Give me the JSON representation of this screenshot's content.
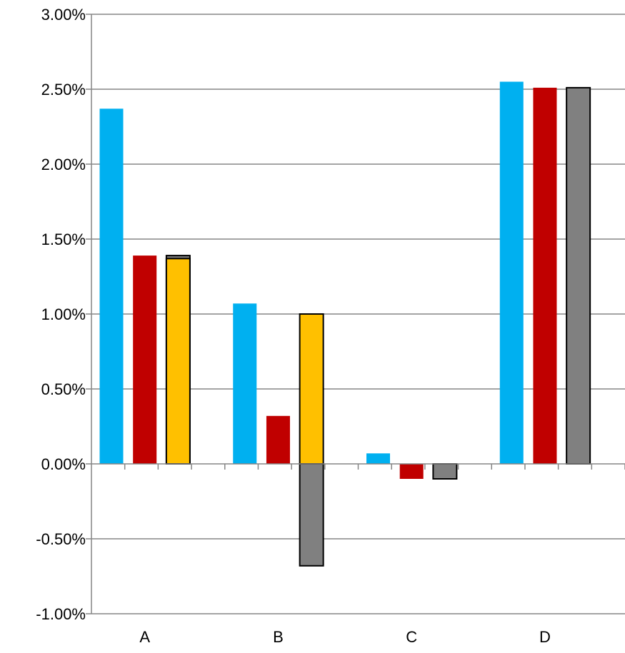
{
  "chart_data": {
    "type": "bar",
    "stacked_overlay": true,
    "categories": [
      "A",
      "B",
      "C",
      "D"
    ],
    "y_ticks": [
      "3.00%",
      "2.50%",
      "2.00%",
      "1.50%",
      "1.00%",
      "0.50%",
      "0.00%",
      "-0.50%",
      "-1.00%"
    ],
    "ylim": [
      -0.01,
      0.03
    ],
    "grid": true,
    "legend": "none",
    "colors": {
      "blue": "#00B0F0",
      "red": "#C00000",
      "yellow": "#FFC000",
      "gray": "#808080",
      "axis": "#868686",
      "grid": "#868686"
    },
    "bars": [
      {
        "category": "A",
        "slot": 0,
        "color": "blue",
        "value": 0.0237
      },
      {
        "category": "A",
        "slot": 1,
        "color": "red",
        "value": 0.0139
      },
      {
        "category": "A",
        "slot": 2,
        "color": "gray",
        "value": 0.0139,
        "outlined": true
      },
      {
        "category": "A",
        "slot": 2,
        "color": "yellow",
        "value": 0.0137,
        "outlined": true
      },
      {
        "category": "B",
        "slot": 0,
        "color": "blue",
        "value": 0.0107
      },
      {
        "category": "B",
        "slot": 1,
        "color": "red",
        "value": 0.0032
      },
      {
        "category": "B",
        "slot": 2,
        "color": "yellow",
        "value": 0.01,
        "outlined": true
      },
      {
        "category": "B",
        "slot": 2,
        "color": "gray",
        "value": -0.0068,
        "outlined": true
      },
      {
        "category": "C",
        "slot": 0,
        "color": "blue",
        "value": 0.0007
      },
      {
        "category": "C",
        "slot": 1,
        "color": "red",
        "value": -0.001
      },
      {
        "category": "C",
        "slot": 2,
        "color": "gray",
        "value": -0.001,
        "outlined": true
      },
      {
        "category": "D",
        "slot": 0,
        "color": "blue",
        "value": 0.0255
      },
      {
        "category": "D",
        "slot": 1,
        "color": "red",
        "value": 0.0251
      },
      {
        "category": "D",
        "slot": 2,
        "color": "gray",
        "value": 0.0251,
        "outlined": true
      }
    ]
  }
}
